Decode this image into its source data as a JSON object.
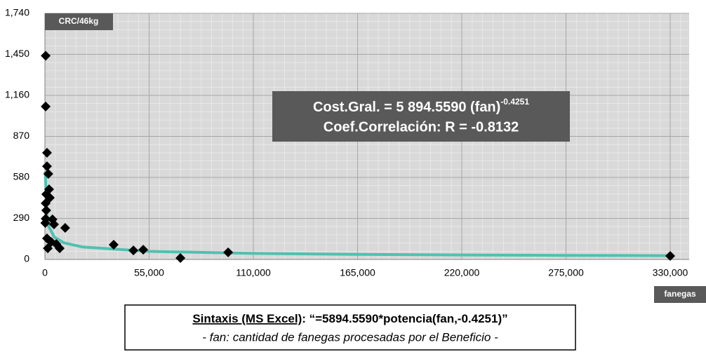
{
  "chart_data": {
    "type": "scatter",
    "y_label": "CRC/46kg",
    "x_label": "fanegas",
    "annotation": {
      "equation": "Cost.Gral. = 5 894.5590 (fan)",
      "exponent": "-0.4251",
      "correlation": "Coef.Correlación: R = -0.8132"
    },
    "note": {
      "syntax_label": "Sintaxis (MS Excel)",
      "syntax": ": “=5894.5590*potencia(fan,-0.4251)”",
      "description": "- fan: cantidad de fanegas procesadas por el Beneficio -"
    },
    "xlim": [
      0,
      340000
    ],
    "ylim": [
      0,
      1740
    ],
    "xticks": [
      0,
      {
        "value": 55000,
        "label": "55,000"
      },
      {
        "value": 110000,
        "label": "110,000"
      },
      {
        "value": 165000,
        "label": "165,000"
      },
      {
        "value": 220000,
        "label": "220,000"
      },
      {
        "value": 275000,
        "label": "275,000"
      },
      {
        "value": 330000,
        "label": "330,000"
      }
    ],
    "yticks": [
      0,
      290,
      580,
      870,
      {
        "value": 1160,
        "label": "1,160"
      },
      {
        "value": 1450,
        "label": "1,450"
      },
      {
        "value": 1740,
        "label": "1,740"
      }
    ],
    "grid": true,
    "points": {
      "color": "#000000",
      "x": [
        400,
        400,
        1100,
        1100,
        1800,
        700,
        2200,
        400,
        700,
        400,
        200,
        1100,
        1500,
        3300,
        4000,
        4800,
        6000,
        7800,
        10700,
        2600,
        36300,
        46700,
        51900,
        71500,
        96700,
        330000
      ],
      "values": [
        1440,
        1081,
        754,
        659,
        605,
        461,
        496,
        397,
        347,
        288,
        258,
        149,
        79,
        124,
        283,
        248,
        109,
        79,
        223,
        436,
        104,
        64,
        69,
        10,
        50,
        25
      ]
    },
    "trendline": {
      "color": "#4fc1b0",
      "x": [
        200,
        1000,
        2000,
        5000,
        10000,
        20000,
        55000,
        110000,
        165000,
        220000,
        275000,
        330000
      ],
      "values": [
        620,
        313,
        233,
        157.8,
        117.5,
        87.5,
        56.9,
        42.4,
        35.7,
        31.6,
        28.7,
        26.6
      ]
    }
  }
}
